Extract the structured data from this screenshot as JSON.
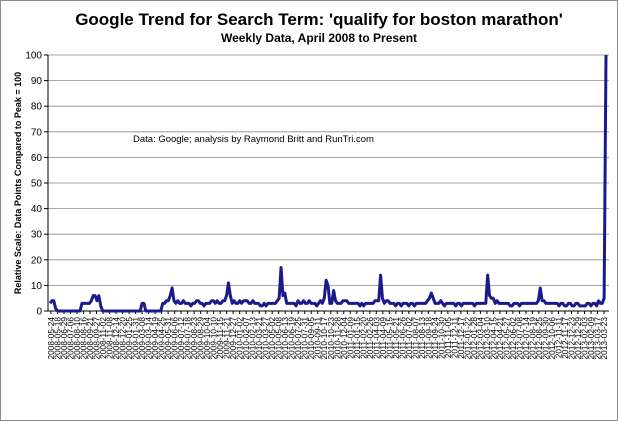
{
  "chart_data": {
    "type": "line",
    "title": "Google Trend for Search Term: 'qualify for boston marathon'",
    "subtitle": "Weekly Data, April 2008 to Present",
    "ylabel": "Relative Scale: Data Points Compared to Peak = 100",
    "xlabel": "",
    "annotation": "Data: Google; analysis by Raymond Britt and RunTri.com",
    "ylim": [
      0,
      100
    ],
    "yticks": [
      0,
      10,
      20,
      30,
      40,
      50,
      60,
      70,
      80,
      90,
      100
    ],
    "grid": true,
    "line_color": "#1a1a8c",
    "x_tick_labels": [
      "2008-05-24",
      "2008-05-18",
      "2008-06-29",
      "2008-07-06",
      "2008-08-10",
      "2008-08-16",
      "2008-09-21",
      "2008-09-27",
      "2008-11-02",
      "2008-11-08",
      "2008-12-14",
      "2008-12-20",
      "2009-01-25",
      "2009-01-31",
      "2009-03-08",
      "2009-03-14",
      "2009-04-19",
      "2009-04-25",
      "2009-05-31",
      "2009-06-06",
      "2009-07-12",
      "2009-07-18",
      "2009-08-23",
      "2009-08-29",
      "2009-10-04",
      "2009-10-10",
      "2009-11-15",
      "2009-11-21",
      "2009-12-27",
      "2010-01-02",
      "2010-02-07",
      "2010-02-13",
      "2010-03-21",
      "2010-03-27",
      "2010-05-02",
      "2010-05-08",
      "2010-06-13",
      "2010-06-19",
      "2010-07-25",
      "2010-07-31",
      "2010-09-05",
      "2010-09-11",
      "2010-10-17",
      "2010-10-23",
      "2010-11-28",
      "2010-12-04",
      "2011-01-09",
      "2011-01-15",
      "2011-02-20",
      "2011-02-26",
      "2011-04-03",
      "2011-04-09",
      "2011-05-15",
      "2011-05-21",
      "2011-06-26",
      "2011-07-02",
      "2011-08-07",
      "2011-08-13",
      "2011-09-18",
      "2011-09-24",
      "2011-10-30",
      "2011-11-05",
      "2011-12-11",
      "2011-12-17",
      "2012-01-22",
      "2012-01-28",
      "2012-03-04",
      "2012-03-10",
      "2012-04-15",
      "2012-04-21",
      "2012-05-27",
      "2012-06-02",
      "2012-07-08",
      "2012-07-14",
      "2012-08-19",
      "2012-08-25",
      "2012-09-30",
      "2012-10-06",
      "2012-11-11",
      "2012-11-17",
      "2012-12-23",
      "2012-12-29",
      "2013-02-03",
      "2013-02-09",
      "2013-03-17",
      "2013-03-23"
    ],
    "series": [
      {
        "values": [
          3,
          4,
          4,
          1,
          0,
          0,
          0,
          0,
          0,
          0,
          0,
          0,
          0,
          0,
          0,
          0,
          0,
          3,
          3,
          3,
          3,
          3,
          4,
          6,
          6,
          4,
          6,
          2,
          0,
          0,
          0,
          0,
          0,
          0,
          0,
          0,
          0,
          0,
          0,
          0,
          0,
          0,
          0,
          0,
          0,
          0,
          0,
          0,
          0,
          3,
          3,
          0,
          0,
          0,
          0,
          0,
          0,
          0,
          0,
          0,
          3,
          3,
          4,
          4,
          6,
          9,
          4,
          3,
          4,
          3,
          3,
          4,
          3,
          3,
          3,
          2,
          3,
          3,
          4,
          4,
          3,
          3,
          2,
          3,
          3,
          3,
          4,
          4,
          3,
          4,
          3,
          3,
          4,
          4,
          6,
          11,
          6,
          3,
          4,
          3,
          3,
          4,
          3,
          4,
          4,
          4,
          3,
          3,
          4,
          3,
          3,
          3,
          2,
          2,
          3,
          2,
          3,
          3,
          3,
          3,
          3,
          4,
          5,
          17,
          6,
          7,
          3,
          3,
          3,
          3,
          3,
          2,
          4,
          3,
          3,
          4,
          3,
          3,
          4,
          3,
          3,
          3,
          2,
          3,
          4,
          3,
          5,
          12,
          10,
          3,
          3,
          8,
          4,
          3,
          3,
          3,
          4,
          4,
          4,
          3,
          3,
          3,
          3,
          3,
          3,
          2,
          3,
          2,
          3,
          3,
          3,
          3,
          3,
          4,
          4,
          4,
          14,
          5,
          3,
          4,
          4,
          3,
          3,
          3,
          2,
          3,
          3,
          2,
          3,
          3,
          3,
          2,
          3,
          3,
          2,
          3,
          3,
          3,
          3,
          3,
          3,
          4,
          5,
          7,
          5,
          3,
          3,
          3,
          4,
          3,
          2,
          3,
          3,
          3,
          3,
          3,
          2,
          3,
          3,
          2,
          3,
          3,
          3,
          3,
          3,
          3,
          2,
          3,
          3,
          3,
          3,
          3,
          3,
          14,
          6,
          5,
          5,
          3,
          4,
          3,
          3,
          3,
          3,
          3,
          3,
          2,
          2,
          3,
          3,
          3,
          2,
          3,
          3,
          3,
          3,
          3,
          3,
          3,
          3,
          3,
          4,
          9,
          4,
          4,
          3,
          3,
          3,
          3,
          3,
          3,
          3,
          2,
          3,
          3,
          2,
          2,
          3,
          3,
          2,
          2,
          3,
          3,
          2,
          2,
          2,
          2,
          3,
          3,
          2,
          3,
          3,
          2,
          4,
          3,
          3,
          5,
          100
        ]
      }
    ]
  }
}
